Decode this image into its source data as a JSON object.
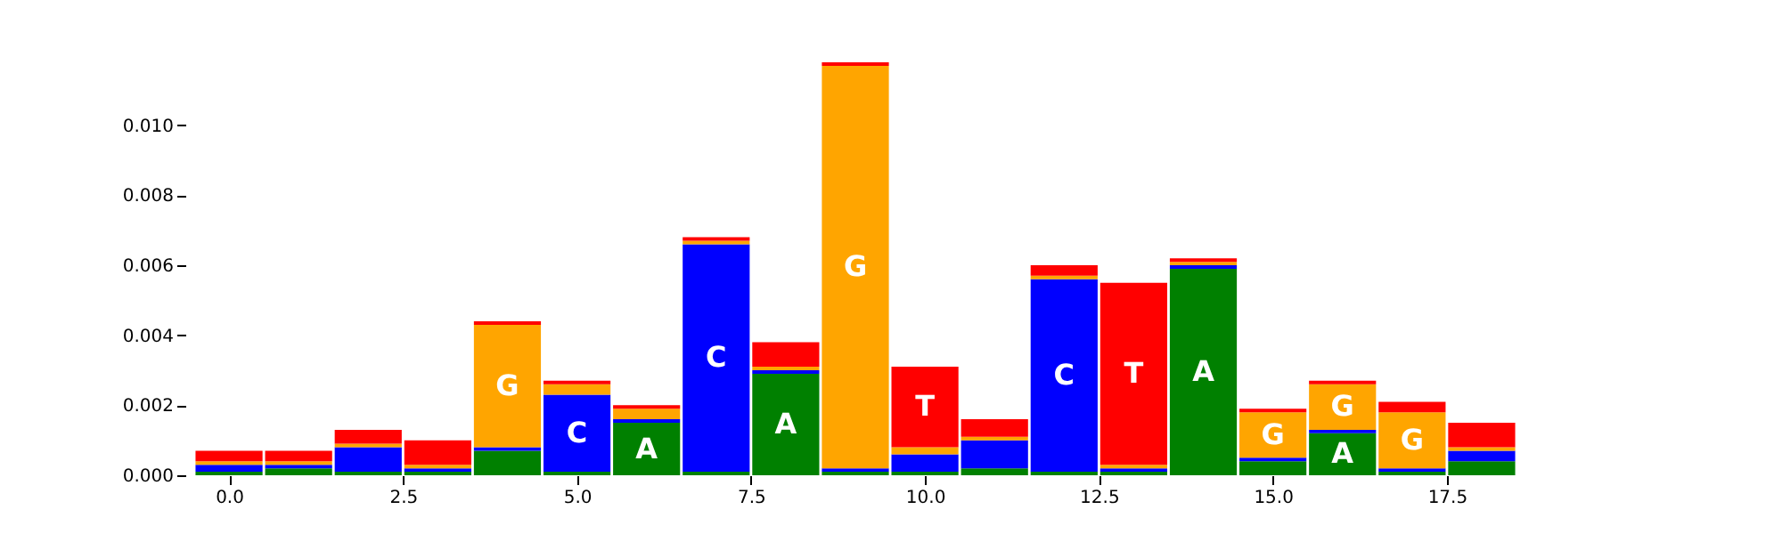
{
  "chart_data": {
    "type": "bar",
    "stacked": true,
    "x": [
      0,
      1,
      2,
      3,
      4,
      5,
      6,
      7,
      8,
      9,
      10,
      11,
      12,
      13,
      14,
      15,
      16,
      17,
      18
    ],
    "series": [
      {
        "name": "A",
        "color": "#008000",
        "values": [
          0.0001,
          0.0002,
          0.0001,
          0.0001,
          0.0007,
          0.0001,
          0.0015,
          0.0001,
          0.0029,
          0.0001,
          0.0001,
          0.0002,
          0.0001,
          0.0001,
          0.0059,
          0.0004,
          0.0012,
          0.0001,
          0.0004
        ]
      },
      {
        "name": "C",
        "color": "#0000ff",
        "values": [
          0.0002,
          0.0001,
          0.0007,
          0.0001,
          0.0001,
          0.0022,
          0.0001,
          0.0065,
          0.0001,
          0.0001,
          0.0005,
          0.0008,
          0.0055,
          0.0001,
          0.0001,
          0.0001,
          0.0001,
          0.0001,
          0.0003
        ]
      },
      {
        "name": "G",
        "color": "#ffa500",
        "values": [
          0.0001,
          0.0001,
          0.0001,
          0.0001,
          0.0035,
          0.0003,
          0.0003,
          0.0001,
          0.0001,
          0.0115,
          0.0002,
          0.0001,
          0.0001,
          0.0001,
          0.0001,
          0.0013,
          0.0013,
          0.0016,
          0.0001
        ]
      },
      {
        "name": "T",
        "color": "#ff0000",
        "values": [
          0.0003,
          0.0003,
          0.0004,
          0.0007,
          0.0001,
          0.0001,
          0.0001,
          0.0001,
          0.0007,
          0.0001,
          0.0023,
          0.0005,
          0.0003,
          0.0052,
          0.0001,
          0.0001,
          0.0001,
          0.0003,
          0.0007
        ]
      }
    ],
    "xlim": [
      -0.5,
      18.5
    ],
    "ylim": [
      0,
      0.0118
    ],
    "xticks": [
      {
        "value": 0,
        "label": "0.0"
      },
      {
        "value": 2.5,
        "label": "2.5"
      },
      {
        "value": 5,
        "label": "5.0"
      },
      {
        "value": 7.5,
        "label": "7.5"
      },
      {
        "value": 10,
        "label": "10.0"
      },
      {
        "value": 12.5,
        "label": "12.5"
      },
      {
        "value": 15,
        "label": "15.0"
      },
      {
        "value": 17.5,
        "label": "17.5"
      }
    ],
    "yticks": [
      {
        "value": 0,
        "label": "0.000"
      },
      {
        "value": 0.002,
        "label": "0.002"
      },
      {
        "value": 0.004,
        "label": "0.004"
      },
      {
        "value": 0.006,
        "label": "0.006"
      },
      {
        "value": 0.008,
        "label": "0.008"
      },
      {
        "value": 0.01,
        "label": "0.010"
      }
    ],
    "grid": false,
    "legend": false
  }
}
